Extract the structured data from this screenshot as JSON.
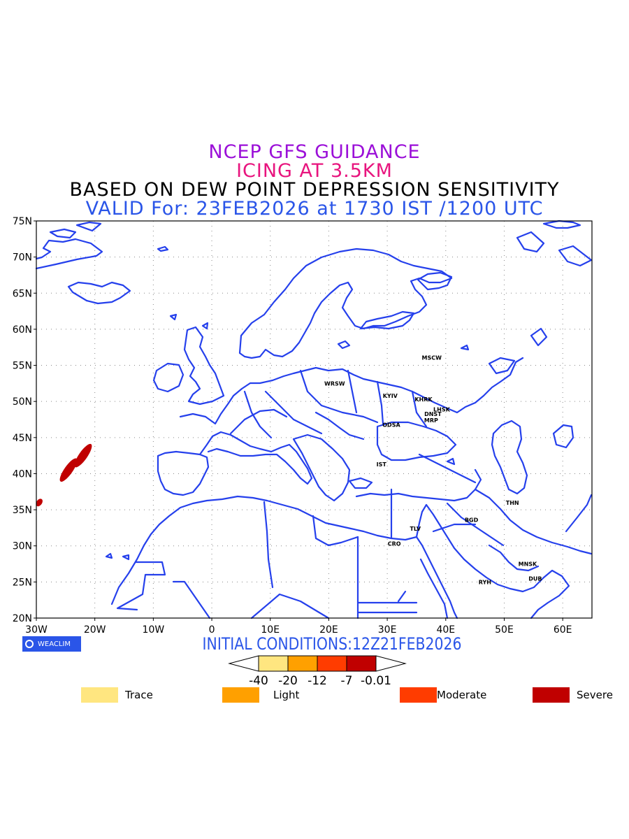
{
  "header": {
    "line1": "NCEP GFS GUIDANCE",
    "line2": "ICING AT 3.5KM",
    "line3": "BASED ON DEW POINT DEPRESSION SENSITIVITY",
    "line4": "VALID For: 23FEB2026 at 1730 IST /1200 UTC"
  },
  "colors": {
    "line1": "#9b10d8",
    "line2": "#e8147e",
    "line3": "#000000",
    "line4": "#2a55e8",
    "coast": "#2540ec",
    "trace": "#ffe680",
    "light": "#ffa000",
    "moderate": "#ff3c00",
    "severe": "#c00000"
  },
  "map": {
    "lon_range": [
      -30,
      65
    ],
    "lat_range": [
      20,
      75
    ],
    "lon_ticks": [
      "30W",
      "20W",
      "10W",
      "0",
      "10E",
      "20E",
      "30E",
      "40E",
      "50E",
      "60E"
    ],
    "lat_ticks": [
      "20N",
      "25N",
      "30N",
      "35N",
      "40N",
      "45N",
      "50N",
      "55N",
      "60N",
      "65N",
      "70N",
      "75N"
    ],
    "grid": "dotted",
    "cities": [
      {
        "name": "MSCW",
        "lon": 37.6,
        "lat": 55.8
      },
      {
        "name": "WRSW",
        "lon": 21.0,
        "lat": 52.2
      },
      {
        "name": "KYIV",
        "lon": 30.5,
        "lat": 50.5
      },
      {
        "name": "KHRK",
        "lon": 36.2,
        "lat": 50.0
      },
      {
        "name": "LHSK",
        "lon": 39.3,
        "lat": 48.6
      },
      {
        "name": "DNST",
        "lon": 37.8,
        "lat": 48.0
      },
      {
        "name": "MRP",
        "lon": 37.5,
        "lat": 47.1
      },
      {
        "name": "ODSA",
        "lon": 30.7,
        "lat": 46.5
      },
      {
        "name": "IST",
        "lon": 29.0,
        "lat": 41.0
      },
      {
        "name": "THN",
        "lon": 51.4,
        "lat": 35.7
      },
      {
        "name": "BGD",
        "lon": 44.4,
        "lat": 33.3
      },
      {
        "name": "TLV",
        "lon": 34.8,
        "lat": 32.1
      },
      {
        "name": "CRO",
        "lon": 31.2,
        "lat": 30.0
      },
      {
        "name": "MNSK",
        "lon": 54.0,
        "lat": 27.2
      },
      {
        "name": "DUB",
        "lon": 55.3,
        "lat": 25.2
      },
      {
        "name": "RYH",
        "lon": 46.7,
        "lat": 24.7
      }
    ],
    "icing_areas": [
      {
        "category": "severe",
        "lon": -24.5,
        "lat": 40.5
      },
      {
        "category": "severe",
        "lon": -22.0,
        "lat": 42.5
      },
      {
        "category": "severe",
        "lon": -29.5,
        "lat": 36.0
      }
    ]
  },
  "logo": "WEACLIM",
  "initial_conditions": "INITIAL CONDITIONS:12Z21FEB2026",
  "colorbar": {
    "ticks": [
      "-40",
      "-20",
      "-12",
      "-7",
      "-0.01"
    ],
    "colors": [
      "#ffe680",
      "#ffa000",
      "#ff3c00",
      "#c00000"
    ]
  },
  "legend": [
    {
      "label": "Trace",
      "color": "#ffe680"
    },
    {
      "label": "Light",
      "color": "#ffa000"
    },
    {
      "label": "Moderate",
      "color": "#ff3c00"
    },
    {
      "label": "Severe",
      "color": "#c00000"
    }
  ]
}
